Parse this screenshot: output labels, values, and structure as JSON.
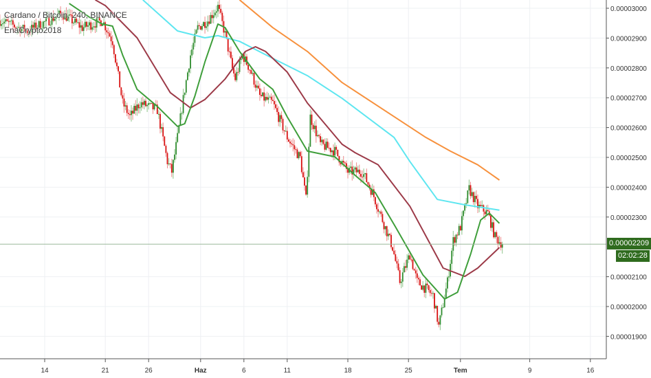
{
  "header": {
    "symbol_title": "Cardano / Bitcoin, 240, BINANCE",
    "author": "EnaCrypto2018"
  },
  "price_scale": {
    "current_price": "0.00002209",
    "countdown": "02:02:28",
    "current_price_color": "#2f6b1e"
  },
  "colors": {
    "up": "#2e8b2e",
    "down": "#d81010",
    "ma_orange": "#f7913d",
    "ma_cyan": "#5ee6f0",
    "ma_darkred": "#9c3a48",
    "ma_green": "#3e9e3a",
    "grid": "#eef0f3"
  },
  "chart_data": {
    "type": "candlestick",
    "title": "Cardano / Bitcoin, 240, BINANCE",
    "interval": "240",
    "grid": true,
    "ylim": [
      1.84e-05,
      3.028e-05
    ],
    "y_ticks": [
      "0.00003000",
      "0.00002900",
      "0.00002800",
      "0.00002700",
      "0.00002600",
      "0.00002500",
      "0.00002400",
      "0.00002300",
      "0.00002100",
      "0.00002000",
      "0.00001900"
    ],
    "x_ticks": [
      {
        "label": "14",
        "date": "2018-05-14"
      },
      {
        "label": "21",
        "date": "2018-05-21"
      },
      {
        "label": "26",
        "date": "2018-05-26"
      },
      {
        "label": "Haz",
        "date": "2018-06-01"
      },
      {
        "label": "6",
        "date": "2018-06-06"
      },
      {
        "label": "11",
        "date": "2018-06-11"
      },
      {
        "label": "18",
        "date": "2018-06-18"
      },
      {
        "label": "25",
        "date": "2018-06-25"
      },
      {
        "label": "Tem",
        "date": "2018-07-01"
      },
      {
        "label": "9",
        "date": "2018-07-09"
      },
      {
        "label": "16",
        "date": "2018-07-16"
      }
    ],
    "price_path": [
      [
        "2018-05-08 20:00",
        2.959e-05
      ],
      [
        "2018-05-12 00:00",
        2.924e-05
      ],
      [
        "2018-05-16 00:00",
        2.982e-05
      ],
      [
        "2018-05-18 08:00",
        2.935e-05
      ],
      [
        "2018-05-20 16:00",
        2.959e-05
      ],
      [
        "2018-05-21 20:00",
        2.889e-05
      ],
      [
        "2018-05-23 00:00",
        2.682e-05
      ],
      [
        "2018-05-23 20:00",
        2.636e-05
      ],
      [
        "2018-05-25 00:00",
        2.682e-05
      ],
      [
        "2018-05-27 00:00",
        2.659e-05
      ],
      [
        "2018-05-28 04:00",
        2.486e-05
      ],
      [
        "2018-05-28 16:00",
        2.452e-05
      ],
      [
        "2018-05-29 08:00",
        2.567e-05
      ],
      [
        "2018-05-30 04:00",
        2.728e-05
      ],
      [
        "2018-05-30 20:00",
        2.843e-05
      ],
      [
        "2018-05-31 16:00",
        2.935e-05
      ],
      [
        "2018-06-01 20:00",
        2.959e-05
      ],
      [
        "2018-06-03 00:00",
        3.005e-05
      ],
      [
        "2018-06-03 20:00",
        2.912e-05
      ],
      [
        "2018-06-04 16:00",
        2.797e-05
      ],
      [
        "2018-06-05 00:00",
        2.763e-05
      ],
      [
        "2018-06-05 20:00",
        2.843e-05
      ],
      [
        "2018-06-06 16:00",
        2.797e-05
      ],
      [
        "2018-06-07 20:00",
        2.705e-05
      ],
      [
        "2018-06-09 08:00",
        2.682e-05
      ],
      [
        "2018-06-11 00:00",
        2.567e-05
      ],
      [
        "2018-06-12 12:00",
        2.498e-05
      ],
      [
        "2018-06-13 04:00",
        2.359e-05
      ],
      [
        "2018-06-13 16:00",
        2.636e-05
      ],
      [
        "2018-06-14 20:00",
        2.544e-05
      ],
      [
        "2018-06-16 12:00",
        2.521e-05
      ],
      [
        "2018-06-18 00:00",
        2.452e-05
      ],
      [
        "2018-06-19 16:00",
        2.452e-05
      ],
      [
        "2018-06-20 20:00",
        2.382e-05
      ],
      [
        "2018-06-22 00:00",
        2.29e-05
      ],
      [
        "2018-06-23 04:00",
        2.198e-05
      ],
      [
        "2018-06-24 00:00",
        2.083e-05
      ],
      [
        "2018-06-25 04:00",
        2.175e-05
      ],
      [
        "2018-06-26 00:00",
        2.083e-05
      ],
      [
        "2018-06-27 00:00",
        2.06e-05
      ],
      [
        "2018-06-27 20:00",
        2.037e-05
      ],
      [
        "2018-06-28 12:00",
        1.933e-05
      ],
      [
        "2018-06-29 12:00",
        2.083e-05
      ],
      [
        "2018-06-30 04:00",
        2.221e-05
      ],
      [
        "2018-07-01 00:00",
        2.267e-05
      ],
      [
        "2018-07-02 00:00",
        2.394e-05
      ],
      [
        "2018-07-03 00:00",
        2.336e-05
      ],
      [
        "2018-07-04 04:00",
        2.313e-05
      ],
      [
        "2018-07-05 00:00",
        2.233e-05
      ],
      [
        "2018-07-05 20:00",
        2.209e-05
      ]
    ],
    "moving_averages": [
      {
        "color": "#f7913d",
        "points": [
          [
            "2018-06-05 12:00",
            3.028e-05
          ],
          [
            "2018-06-09 08:00",
            2.935e-05
          ],
          [
            "2018-06-13 08:00",
            2.855e-05
          ],
          [
            "2018-06-17 08:00",
            2.751e-05
          ],
          [
            "2018-06-27 00:00",
            2.567e-05
          ],
          [
            "2018-06-29 20:00",
            2.521e-05
          ],
          [
            "2018-07-03 00:00",
            2.475e-05
          ],
          [
            "2018-07-05 12:00",
            2.424e-05
          ]
        ]
      },
      {
        "color": "#5ee6f0",
        "points": [
          [
            "2018-05-25 08:00",
            3.028e-05
          ],
          [
            "2018-05-29 08:00",
            2.924e-05
          ],
          [
            "2018-06-01 12:00",
            2.901e-05
          ],
          [
            "2018-06-03 00:00",
            2.908e-05
          ],
          [
            "2018-06-05 12:00",
            2.889e-05
          ],
          [
            "2018-06-09 08:00",
            2.832e-05
          ],
          [
            "2018-06-13 08:00",
            2.774e-05
          ],
          [
            "2018-06-17 08:00",
            2.698e-05
          ],
          [
            "2018-06-23 08:00",
            2.567e-05
          ],
          [
            "2018-06-25 04:00",
            2.486e-05
          ],
          [
            "2018-06-28 08:00",
            2.359e-05
          ],
          [
            "2018-07-01 12:00",
            2.341e-05
          ],
          [
            "2018-07-05 12:00",
            2.323e-05
          ]
        ]
      },
      {
        "color": "#9c3a48",
        "points": [
          [
            "2018-05-19 20:00",
            3.028e-05
          ],
          [
            "2018-05-21 00:00",
            3.009e-05
          ],
          [
            "2018-05-24 16:00",
            2.901e-05
          ],
          [
            "2018-05-28 12:00",
            2.717e-05
          ],
          [
            "2018-05-30 20:00",
            2.666e-05
          ],
          [
            "2018-06-01 12:00",
            2.694e-05
          ],
          [
            "2018-06-03 20:00",
            2.763e-05
          ],
          [
            "2018-06-06 04:00",
            2.855e-05
          ],
          [
            "2018-06-07 08:00",
            2.871e-05
          ],
          [
            "2018-06-08 12:00",
            2.855e-05
          ],
          [
            "2018-06-11 00:00",
            2.786e-05
          ],
          [
            "2018-06-13 08:00",
            2.682e-05
          ],
          [
            "2018-06-17 08:00",
            2.544e-05
          ],
          [
            "2018-06-18 20:00",
            2.516e-05
          ],
          [
            "2018-06-21 12:00",
            2.475e-05
          ],
          [
            "2018-06-25 04:00",
            2.336e-05
          ],
          [
            "2018-06-29 00:00",
            2.129e-05
          ],
          [
            "2018-07-01 12:00",
            2.101e-05
          ],
          [
            "2018-07-03 00:00",
            2.129e-05
          ],
          [
            "2018-07-05 12:00",
            2.198e-05
          ]
        ]
      },
      {
        "color": "#3e9e3a",
        "points": [
          [
            "2018-05-16 20:00",
            3.016e-05
          ],
          [
            "2018-05-19 04:00",
            2.97e-05
          ],
          [
            "2018-05-20 16:00",
            2.947e-05
          ],
          [
            "2018-05-21 20:00",
            2.94e-05
          ],
          [
            "2018-05-23 00:00",
            2.843e-05
          ],
          [
            "2018-05-24 16:00",
            2.728e-05
          ],
          [
            "2018-05-27 00:00",
            2.671e-05
          ],
          [
            "2018-05-29 08:00",
            2.604e-05
          ],
          [
            "2018-05-30 04:00",
            2.613e-05
          ],
          [
            "2018-05-31 08:00",
            2.705e-05
          ],
          [
            "2018-06-01 12:00",
            2.82e-05
          ],
          [
            "2018-06-03 00:00",
            2.947e-05
          ],
          [
            "2018-06-03 20:00",
            2.935e-05
          ],
          [
            "2018-06-05 12:00",
            2.855e-05
          ],
          [
            "2018-06-07 20:00",
            2.763e-05
          ],
          [
            "2018-06-09 08:00",
            2.728e-05
          ],
          [
            "2018-06-11 00:00",
            2.636e-05
          ],
          [
            "2018-06-13 08:00",
            2.521e-05
          ],
          [
            "2018-06-16 12:00",
            2.502e-05
          ],
          [
            "2018-06-18 20:00",
            2.44e-05
          ],
          [
            "2018-06-21 04:00",
            2.382e-05
          ],
          [
            "2018-06-23 12:00",
            2.267e-05
          ],
          [
            "2018-06-26 16:00",
            2.106e-05
          ],
          [
            "2018-06-29 04:00",
            2.025e-05
          ],
          [
            "2018-06-30 16:00",
            2.048e-05
          ],
          [
            "2018-07-02 04:00",
            2.175e-05
          ],
          [
            "2018-07-03 08:00",
            2.29e-05
          ],
          [
            "2018-07-04 08:00",
            2.313e-05
          ],
          [
            "2018-07-05 12:00",
            2.279e-05
          ]
        ]
      }
    ]
  }
}
